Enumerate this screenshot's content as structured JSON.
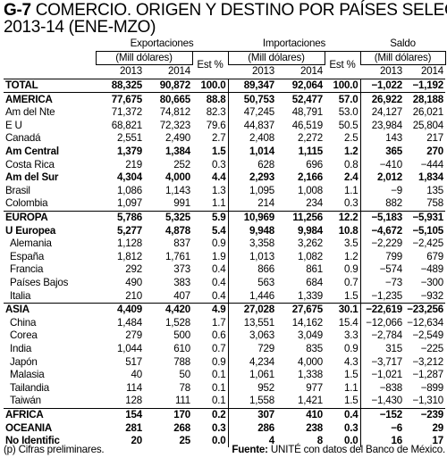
{
  "title": {
    "code": "G-7",
    "line1": "COMERCIO. ORIGEN Y DESTINO POR PAÍSES SELEC",
    "line2": "2013-14 (ENE-MZO)"
  },
  "headers": {
    "exportaciones": "Exportaciones",
    "importaciones": "Importaciones",
    "saldo": "Saldo",
    "unit": "(Mill dólares)",
    "est": "Est %",
    "y2013": "2013",
    "y2014": "2014"
  },
  "rows": [
    {
      "label": "TOTAL",
      "bold": true,
      "sub": false,
      "sep": false,
      "e13": "88,325",
      "e14": "90,872",
      "eest": "100.0",
      "i13": "89,347",
      "i14": "92,064",
      "iest": "100.0",
      "s13": "−1,022",
      "s14": "−1,192"
    },
    {
      "label": "AMERICA",
      "bold": true,
      "sub": false,
      "sep": true,
      "e13": "77,675",
      "e14": "80,665",
      "eest": "88.8",
      "i13": "50,753",
      "i14": "52,477",
      "iest": "57.0",
      "s13": "26,922",
      "s14": "28,188"
    },
    {
      "label": "Am del Nte",
      "bold": false,
      "sub": false,
      "sep": false,
      "e13": "71,372",
      "e14": "74,812",
      "eest": "82.3",
      "i13": "47,245",
      "i14": "48,791",
      "iest": "53.0",
      "s13": "24,127",
      "s14": "26,021"
    },
    {
      "label": "E U",
      "bold": false,
      "sub": false,
      "sep": false,
      "e13": "68,821",
      "e14": "72,323",
      "eest": "79.6",
      "i13": "44,837",
      "i14": "46,519",
      "iest": "50.5",
      "s13": "23,984",
      "s14": "25,804"
    },
    {
      "label": "Canadá",
      "bold": false,
      "sub": false,
      "sep": false,
      "e13": "2,551",
      "e14": "2,490",
      "eest": "2.7",
      "i13": "2,408",
      "i14": "2,272",
      "iest": "2.5",
      "s13": "143",
      "s14": "217"
    },
    {
      "label": "Am Central",
      "bold": true,
      "sub": false,
      "sep": false,
      "e13": "1,379",
      "e14": "1,384",
      "eest": "1.5",
      "i13": "1,014",
      "i14": "1,115",
      "iest": "1.2",
      "s13": "365",
      "s14": "270"
    },
    {
      "label": "Costa Rica",
      "bold": false,
      "sub": false,
      "sep": false,
      "e13": "219",
      "e14": "252",
      "eest": "0.3",
      "i13": "628",
      "i14": "696",
      "iest": "0.8",
      "s13": "−410",
      "s14": "−444"
    },
    {
      "label": "Am del Sur",
      "bold": true,
      "sub": false,
      "sep": false,
      "e13": "4,304",
      "e14": "4,000",
      "eest": "4.4",
      "i13": "2,293",
      "i14": "2,166",
      "iest": "2.4",
      "s13": "2,012",
      "s14": "1,834"
    },
    {
      "label": "Brasil",
      "bold": false,
      "sub": false,
      "sep": false,
      "e13": "1,086",
      "e14": "1,143",
      "eest": "1.3",
      "i13": "1,095",
      "i14": "1,008",
      "iest": "1.1",
      "s13": "−9",
      "s14": "135"
    },
    {
      "label": "Colombia",
      "bold": false,
      "sub": false,
      "sep": false,
      "e13": "1,097",
      "e14": "991",
      "eest": "1.1",
      "i13": "214",
      "i14": "234",
      "iest": "0.3",
      "s13": "882",
      "s14": "758"
    },
    {
      "label": "EUROPA",
      "bold": true,
      "sub": false,
      "sep": true,
      "e13": "5,786",
      "e14": "5,325",
      "eest": "5.9",
      "i13": "10,969",
      "i14": "11,256",
      "iest": "12.2",
      "s13": "−5,183",
      "s14": "−5,931"
    },
    {
      "label": "U Europea",
      "bold": true,
      "sub": false,
      "sep": false,
      "e13": "5,277",
      "e14": "4,878",
      "eest": "5.4",
      "i13": "9,948",
      "i14": "9,984",
      "iest": "10.8",
      "s13": "−4,672",
      "s14": "−5,105"
    },
    {
      "label": "Alemania",
      "bold": false,
      "sub": true,
      "sep": false,
      "e13": "1,128",
      "e14": "837",
      "eest": "0.9",
      "i13": "3,358",
      "i14": "3,262",
      "iest": "3.5",
      "s13": "−2,229",
      "s14": "−2,425"
    },
    {
      "label": "España",
      "bold": false,
      "sub": true,
      "sep": false,
      "e13": "1,812",
      "e14": "1,761",
      "eest": "1.9",
      "i13": "1,013",
      "i14": "1,082",
      "iest": "1.2",
      "s13": "799",
      "s14": "679"
    },
    {
      "label": "Francia",
      "bold": false,
      "sub": true,
      "sep": false,
      "e13": "292",
      "e14": "373",
      "eest": "0.4",
      "i13": "866",
      "i14": "861",
      "iest": "0.9",
      "s13": "−574",
      "s14": "−489"
    },
    {
      "label": "Países Bajos",
      "bold": false,
      "sub": true,
      "sep": false,
      "e13": "490",
      "e14": "383",
      "eest": "0.4",
      "i13": "563",
      "i14": "684",
      "iest": "0.7",
      "s13": "−73",
      "s14": "−300"
    },
    {
      "label": "Italia",
      "bold": false,
      "sub": true,
      "sep": false,
      "e13": "210",
      "e14": "407",
      "eest": "0.4",
      "i13": "1,446",
      "i14": "1,339",
      "iest": "1.5",
      "s13": "−1,235",
      "s14": "−932"
    },
    {
      "label": "ASIA",
      "bold": true,
      "sub": false,
      "sep": true,
      "e13": "4,409",
      "e14": "4,420",
      "eest": "4.9",
      "i13": "27,028",
      "i14": "27,675",
      "iest": "30.1",
      "s13": "−22,619",
      "s14": "−23,256"
    },
    {
      "label": "China",
      "bold": false,
      "sub": true,
      "sep": false,
      "e13": "1,484",
      "e14": "1,528",
      "eest": "1.7",
      "i13": "13,551",
      "i14": "14,162",
      "iest": "15.4",
      "s13": "−12,066",
      "s14": "−12,634"
    },
    {
      "label": "Corea",
      "bold": false,
      "sub": true,
      "sep": false,
      "e13": "279",
      "e14": "500",
      "eest": "0.6",
      "i13": "3,063",
      "i14": "3,049",
      "iest": "3.3",
      "s13": "−2,784",
      "s14": "−2,549"
    },
    {
      "label": "India",
      "bold": false,
      "sub": true,
      "sep": false,
      "e13": "1,044",
      "e14": "610",
      "eest": "0.7",
      "i13": "729",
      "i14": "835",
      "iest": "0.9",
      "s13": "315",
      "s14": "−225"
    },
    {
      "label": "Japón",
      "bold": false,
      "sub": true,
      "sep": false,
      "e13": "517",
      "e14": "788",
      "eest": "0.9",
      "i13": "4,234",
      "i14": "4,000",
      "iest": "4.3",
      "s13": "−3,717",
      "s14": "−3,212"
    },
    {
      "label": "Malasia",
      "bold": false,
      "sub": true,
      "sep": false,
      "e13": "40",
      "e14": "50",
      "eest": "0.1",
      "i13": "1,061",
      "i14": "1,338",
      "iest": "1.5",
      "s13": "−1,021",
      "s14": "−1,287"
    },
    {
      "label": "Tailandia",
      "bold": false,
      "sub": true,
      "sep": false,
      "e13": "114",
      "e14": "78",
      "eest": "0.1",
      "i13": "952",
      "i14": "977",
      "iest": "1.1",
      "s13": "−838",
      "s14": "−899"
    },
    {
      "label": "Taiwán",
      "bold": false,
      "sub": true,
      "sep": false,
      "e13": "128",
      "e14": "111",
      "eest": "0.1",
      "i13": "1,558",
      "i14": "1,421",
      "iest": "1.5",
      "s13": "−1,430",
      "s14": "−1,310"
    },
    {
      "label": "AFRICA",
      "bold": true,
      "sub": false,
      "sep": true,
      "e13": "154",
      "e14": "170",
      "eest": "0.2",
      "i13": "307",
      "i14": "410",
      "iest": "0.4",
      "s13": "−152",
      "s14": "−239"
    },
    {
      "label": "OCEANIA",
      "bold": true,
      "sub": false,
      "sep": false,
      "e13": "281",
      "e14": "268",
      "eest": "0.3",
      "i13": "286",
      "i14": "238",
      "iest": "0.3",
      "s13": "−6",
      "s14": "29"
    },
    {
      "label": "No Identific",
      "bold": true,
      "sub": false,
      "sep": false,
      "e13": "20",
      "e14": "25",
      "eest": "0.0",
      "i13": "4",
      "i14": "8",
      "iest": "0.0",
      "s13": "16",
      "s14": "17"
    }
  ],
  "footer": {
    "note": "(p) Cifras preliminares.",
    "source_label": "Fuente:",
    "source_text": "UNITÉ con datos del Banco de México."
  }
}
